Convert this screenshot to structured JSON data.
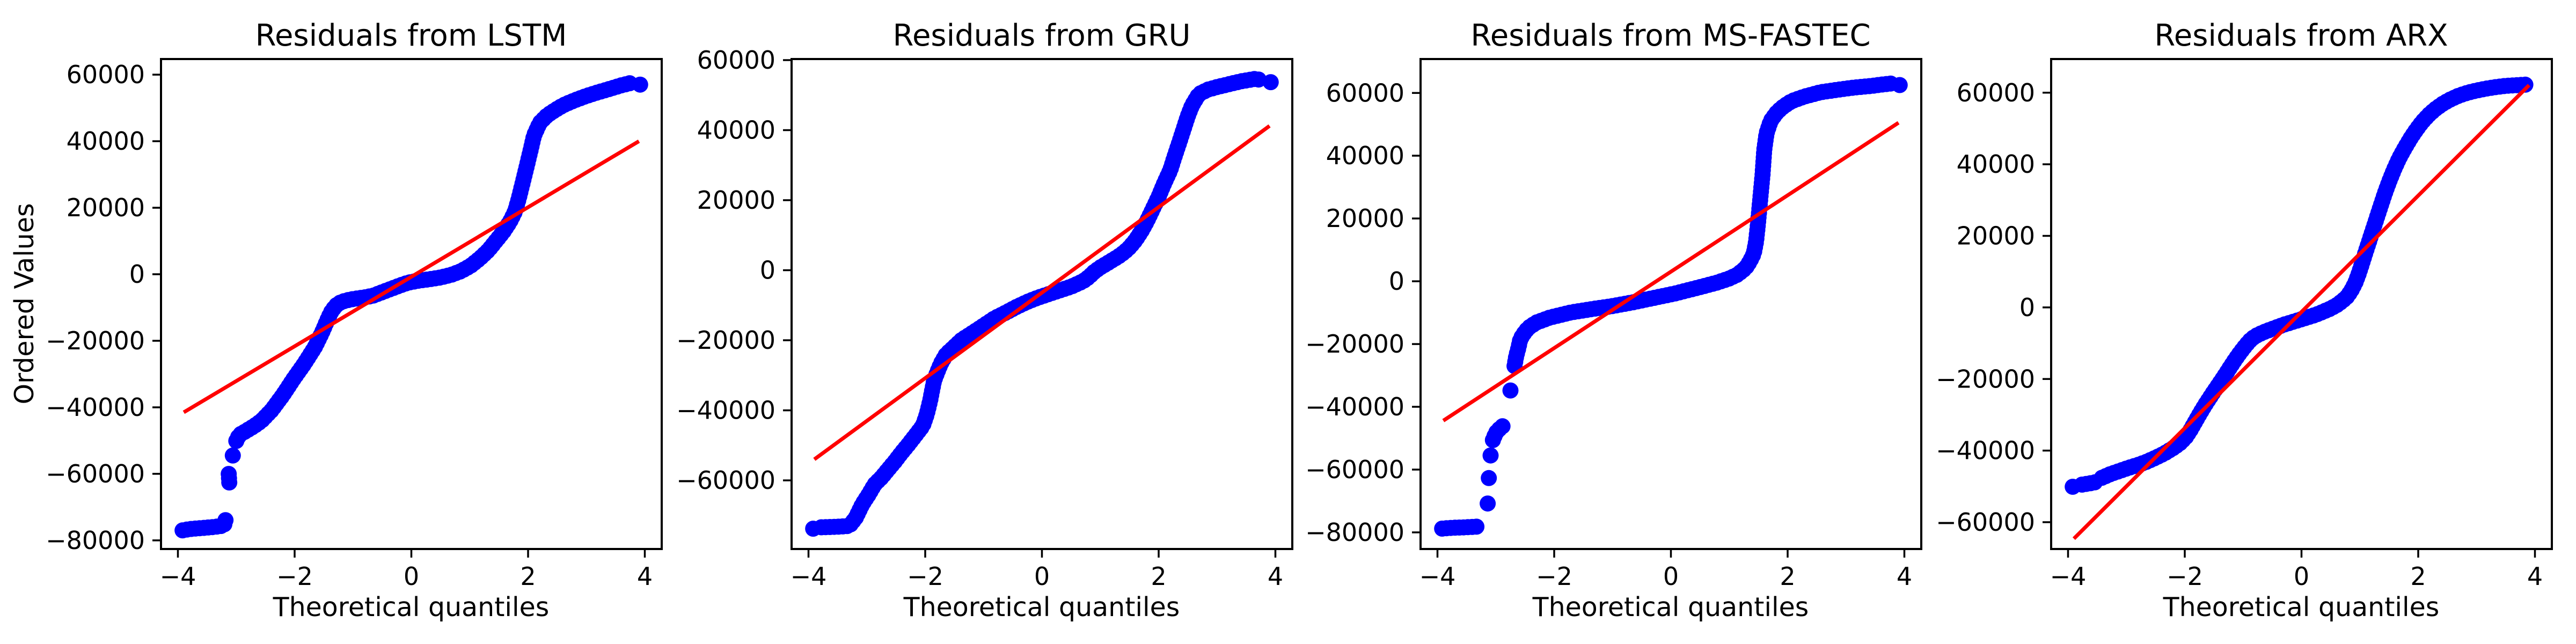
{
  "figure": {
    "background": "#ffffff"
  },
  "style": {
    "dot_color": "#0000ff",
    "ref_line_color": "#ff0000",
    "axis_color": "#000000",
    "text_color": "#000000",
    "dot_radius": 15,
    "ref_line_width": 7,
    "spine_width": 4,
    "tick_width": 3.5,
    "tick_length": 16
  },
  "chart_data": [
    {
      "type": "scatter",
      "title": "Residuals from LSTM",
      "xlabel": "Theoretical quantiles",
      "ylabel": "Ordered Values",
      "xlim": [
        -4.29,
        4.29
      ],
      "ylim": [
        -82600,
        64700
      ],
      "x_ticks": [
        -4,
        -2,
        0,
        2,
        4
      ],
      "y_ticks": [
        -80000,
        -60000,
        -40000,
        -20000,
        0,
        20000,
        40000,
        60000
      ],
      "ref_line": {
        "x": [
          -3.9,
          3.9
        ],
        "y": [
          -41500,
          40000
        ]
      },
      "qq_segments": [
        [
          [
            -3.92,
            -77000
          ],
          [
            -3.8,
            -76600
          ],
          [
            -3.66,
            -76400
          ],
          [
            -3.52,
            -76200
          ],
          [
            -3.4,
            -76000
          ],
          [
            -3.3,
            -75800
          ],
          [
            -3.21,
            -75500
          ],
          [
            -3.17,
            -73000
          ]
        ],
        [
          [
            -3.12,
            -62600
          ],
          [
            -3.13,
            -59800
          ]
        ],
        [
          [
            -3.06,
            -54500
          ]
        ],
        [
          [
            -3.0,
            -50100
          ],
          [
            -2.95,
            -48300
          ],
          [
            -2.85,
            -47300
          ],
          [
            -2.7,
            -45700
          ],
          [
            -2.57,
            -44100
          ],
          [
            -2.39,
            -40800
          ],
          [
            -2.2,
            -36300
          ],
          [
            -2.02,
            -31500
          ],
          [
            -1.83,
            -26800
          ],
          [
            -1.65,
            -21800
          ],
          [
            -1.53,
            -17500
          ],
          [
            -1.44,
            -13800
          ],
          [
            -1.38,
            -11500
          ],
          [
            -1.3,
            -9500
          ],
          [
            -1.2,
            -8300
          ],
          [
            -1.05,
            -7600
          ],
          [
            -0.9,
            -7200
          ],
          [
            -0.78,
            -6900
          ],
          [
            -0.65,
            -6400
          ],
          [
            -0.5,
            -5400
          ],
          [
            -0.35,
            -4400
          ],
          [
            -0.2,
            -3400
          ],
          [
            -0.05,
            -2500
          ],
          [
            0.13,
            -1900
          ],
          [
            0.31,
            -1500
          ],
          [
            0.49,
            -1000
          ],
          [
            0.68,
            -200
          ],
          [
            0.86,
            1000
          ],
          [
            1.02,
            2600
          ],
          [
            1.17,
            4700
          ],
          [
            1.32,
            7200
          ],
          [
            1.44,
            9800
          ],
          [
            1.57,
            12600
          ],
          [
            1.69,
            15800
          ],
          [
            1.78,
            19000
          ],
          [
            1.85,
            23400
          ],
          [
            1.94,
            29800
          ],
          [
            2.03,
            36300
          ],
          [
            2.1,
            41600
          ],
          [
            2.2,
            45500
          ],
          [
            2.33,
            47800
          ],
          [
            2.45,
            49200
          ],
          [
            2.6,
            50800
          ],
          [
            2.8,
            52300
          ],
          [
            3.0,
            53600
          ],
          [
            3.2,
            54700
          ],
          [
            3.45,
            56000
          ],
          [
            3.6,
            56800
          ],
          [
            3.78,
            57600
          ]
        ],
        [
          [
            3.92,
            57000
          ]
        ]
      ]
    },
    {
      "type": "scatter",
      "title": "Residuals from GRU",
      "xlabel": "Theoretical quantiles",
      "xlim": [
        -4.29,
        4.29
      ],
      "ylim": [
        -79600,
        60300
      ],
      "x_ticks": [
        -4,
        -2,
        0,
        2,
        4
      ],
      "y_ticks": [
        -60000,
        -40000,
        -20000,
        0,
        20000,
        40000,
        60000
      ],
      "ref_line": {
        "x": [
          -3.9,
          3.9
        ],
        "y": [
          -54000,
          41200
        ]
      },
      "qq_segments": [
        [
          [
            -3.92,
            -73800
          ]
        ],
        [
          [
            -3.78,
            -73400
          ],
          [
            -3.6,
            -73300
          ],
          [
            -3.45,
            -73200
          ],
          [
            -3.3,
            -73000
          ],
          [
            -3.19,
            -70700
          ],
          [
            -3.08,
            -66900
          ],
          [
            -2.96,
            -63800
          ],
          [
            -2.87,
            -61200
          ],
          [
            -2.75,
            -59200
          ],
          [
            -2.65,
            -57200
          ],
          [
            -2.52,
            -54600
          ],
          [
            -2.4,
            -52000
          ],
          [
            -2.28,
            -49600
          ],
          [
            -2.16,
            -47000
          ],
          [
            -2.04,
            -44400
          ],
          [
            -1.97,
            -41000
          ],
          [
            -1.91,
            -36800
          ],
          [
            -1.85,
            -31600
          ],
          [
            -1.78,
            -28600
          ],
          [
            -1.73,
            -26600
          ],
          [
            -1.64,
            -24000
          ],
          [
            -1.51,
            -22000
          ],
          [
            -1.37,
            -19800
          ],
          [
            -1.18,
            -17800
          ],
          [
            -1.0,
            -15800
          ],
          [
            -0.81,
            -13700
          ],
          [
            -0.63,
            -12200
          ],
          [
            -0.45,
            -10600
          ],
          [
            -0.26,
            -9100
          ],
          [
            -0.08,
            -7900
          ],
          [
            0.1,
            -6900
          ],
          [
            0.3,
            -5800
          ],
          [
            0.5,
            -4700
          ],
          [
            0.7,
            -3200
          ],
          [
            0.8,
            -2000
          ],
          [
            0.9,
            -400
          ],
          [
            1.0,
            800
          ],
          [
            1.1,
            1800
          ],
          [
            1.2,
            2800
          ],
          [
            1.3,
            3800
          ],
          [
            1.4,
            5000
          ],
          [
            1.5,
            6500
          ],
          [
            1.6,
            8500
          ],
          [
            1.7,
            11000
          ],
          [
            1.8,
            14000
          ],
          [
            1.9,
            17500
          ],
          [
            2.0,
            21000
          ],
          [
            2.1,
            25000
          ],
          [
            2.2,
            28600
          ],
          [
            2.27,
            32300
          ],
          [
            2.35,
            36300
          ],
          [
            2.43,
            40400
          ],
          [
            2.5,
            44000
          ],
          [
            2.57,
            47000
          ],
          [
            2.69,
            50300
          ],
          [
            2.85,
            51600
          ],
          [
            3.0,
            52300
          ],
          [
            3.15,
            52900
          ],
          [
            3.4,
            53900
          ],
          [
            3.64,
            54600
          ],
          [
            3.78,
            54300
          ]
        ],
        [
          [
            3.92,
            53700
          ]
        ]
      ]
    },
    {
      "type": "scatter",
      "title": "Residuals from MS-FASTEC",
      "xlabel": "Theoretical quantiles",
      "xlim": [
        -4.29,
        4.29
      ],
      "ylim": [
        -85300,
        70800
      ],
      "x_ticks": [
        -4,
        -2,
        0,
        2,
        4
      ],
      "y_ticks": [
        -80000,
        -60000,
        -40000,
        -20000,
        0,
        20000,
        40000,
        60000
      ],
      "ref_line": {
        "x": [
          -3.9,
          3.9
        ],
        "y": [
          -44400,
          50500
        ]
      },
      "qq_segments": [
        [
          [
            -3.92,
            -78800
          ],
          [
            -3.8,
            -78600
          ],
          [
            -3.68,
            -78500
          ],
          [
            -3.55,
            -78400
          ],
          [
            -3.44,
            -78300
          ],
          [
            -3.34,
            -78200
          ],
          [
            -3.26,
            -78100
          ]
        ],
        [
          [
            -3.14,
            -70800
          ]
        ],
        [
          [
            -3.12,
            -62700
          ]
        ],
        [
          [
            -3.09,
            -55500
          ]
        ],
        [
          [
            -3.05,
            -50600
          ],
          [
            -3.0,
            -48300
          ],
          [
            -2.93,
            -46900
          ],
          [
            -2.86,
            -45800
          ]
        ],
        [
          [
            -2.75,
            -34800
          ]
        ],
        [
          [
            -2.68,
            -27000
          ],
          [
            -2.65,
            -23800
          ],
          [
            -2.61,
            -21000
          ],
          [
            -2.58,
            -18400
          ],
          [
            -2.51,
            -16400
          ],
          [
            -2.44,
            -14800
          ],
          [
            -2.3,
            -13100
          ],
          [
            -2.08,
            -11600
          ],
          [
            -1.73,
            -10000
          ],
          [
            -1.37,
            -8900
          ],
          [
            -1.0,
            -7900
          ],
          [
            -0.65,
            -6700
          ],
          [
            -0.29,
            -5300
          ],
          [
            0.07,
            -3900
          ],
          [
            0.43,
            -2200
          ],
          [
            0.78,
            -500
          ],
          [
            1.0,
            900
          ],
          [
            1.14,
            2100
          ],
          [
            1.28,
            4200
          ],
          [
            1.35,
            6200
          ],
          [
            1.42,
            8800
          ],
          [
            1.46,
            12700
          ],
          [
            1.49,
            18000
          ],
          [
            1.53,
            26000
          ],
          [
            1.57,
            33900
          ],
          [
            1.6,
            41900
          ],
          [
            1.64,
            47200
          ],
          [
            1.71,
            51100
          ],
          [
            1.82,
            53900
          ],
          [
            1.93,
            55700
          ],
          [
            2.07,
            57400
          ],
          [
            2.28,
            58800
          ],
          [
            2.56,
            60200
          ],
          [
            2.85,
            61000
          ],
          [
            3.13,
            61700
          ],
          [
            3.42,
            62200
          ],
          [
            3.63,
            62700
          ],
          [
            3.77,
            63000
          ]
        ],
        [
          [
            3.92,
            62500
          ]
        ]
      ]
    },
    {
      "type": "scatter",
      "title": "Residuals from ARX",
      "xlabel": "Theoretical quantiles",
      "xlim": [
        -4.29,
        4.29
      ],
      "ylim": [
        -67500,
        69400
      ],
      "x_ticks": [
        -4,
        -2,
        0,
        2,
        4
      ],
      "y_ticks": [
        -60000,
        -40000,
        -20000,
        0,
        20000,
        40000,
        60000
      ],
      "ref_line": {
        "x": [
          -3.9,
          3.9
        ],
        "y": [
          -64600,
          62100
        ]
      },
      "qq_segments": [
        [
          [
            -3.92,
            -50100
          ]
        ],
        [
          [
            -3.76,
            -49500
          ],
          [
            -3.64,
            -49200
          ],
          [
            -3.52,
            -48800
          ]
        ],
        [
          [
            -3.42,
            -47600
          ],
          [
            -3.28,
            -46600
          ],
          [
            -3.12,
            -45700
          ],
          [
            -2.96,
            -44800
          ],
          [
            -2.8,
            -44000
          ],
          [
            -2.65,
            -43100
          ],
          [
            -2.5,
            -42000
          ],
          [
            -2.35,
            -40800
          ],
          [
            -2.2,
            -39300
          ],
          [
            -2.08,
            -37900
          ],
          [
            -1.98,
            -36200
          ],
          [
            -1.9,
            -34200
          ],
          [
            -1.83,
            -32200
          ],
          [
            -1.75,
            -29900
          ],
          [
            -1.65,
            -27200
          ],
          [
            -1.55,
            -24700
          ],
          [
            -1.45,
            -22300
          ],
          [
            -1.35,
            -19900
          ],
          [
            -1.25,
            -17400
          ],
          [
            -1.15,
            -14900
          ],
          [
            -1.05,
            -12600
          ],
          [
            -0.96,
            -10700
          ],
          [
            -0.88,
            -9200
          ],
          [
            -0.8,
            -8100
          ],
          [
            -0.7,
            -7300
          ],
          [
            -0.6,
            -6600
          ],
          [
            -0.5,
            -6000
          ],
          [
            -0.4,
            -5400
          ],
          [
            -0.3,
            -4800
          ],
          [
            -0.2,
            -4300
          ],
          [
            -0.1,
            -3800
          ],
          [
            0.0,
            -3300
          ],
          [
            0.1,
            -2800
          ],
          [
            0.2,
            -2300
          ],
          [
            0.3,
            -1700
          ],
          [
            0.4,
            -1000
          ],
          [
            0.5,
            -300
          ],
          [
            0.6,
            600
          ],
          [
            0.7,
            1800
          ],
          [
            0.78,
            3000
          ],
          [
            0.85,
            4600
          ],
          [
            0.92,
            6800
          ],
          [
            0.98,
            9400
          ],
          [
            1.04,
            12400
          ],
          [
            1.1,
            15500
          ],
          [
            1.16,
            18500
          ],
          [
            1.22,
            21500
          ],
          [
            1.28,
            24500
          ],
          [
            1.34,
            27500
          ],
          [
            1.4,
            30500
          ],
          [
            1.46,
            33300
          ],
          [
            1.52,
            35900
          ],
          [
            1.58,
            38300
          ],
          [
            1.64,
            40500
          ],
          [
            1.7,
            42500
          ],
          [
            1.78,
            44800
          ],
          [
            1.86,
            47000
          ],
          [
            1.94,
            49000
          ],
          [
            2.02,
            50800
          ],
          [
            2.1,
            52400
          ],
          [
            2.2,
            54100
          ],
          [
            2.3,
            55500
          ],
          [
            2.42,
            56900
          ],
          [
            2.55,
            58100
          ],
          [
            2.7,
            59200
          ],
          [
            2.85,
            60000
          ],
          [
            3.0,
            60600
          ],
          [
            3.15,
            61100
          ],
          [
            3.3,
            61500
          ],
          [
            3.5,
            61900
          ],
          [
            3.7,
            62100
          ],
          [
            3.9,
            62300
          ]
        ]
      ]
    }
  ]
}
